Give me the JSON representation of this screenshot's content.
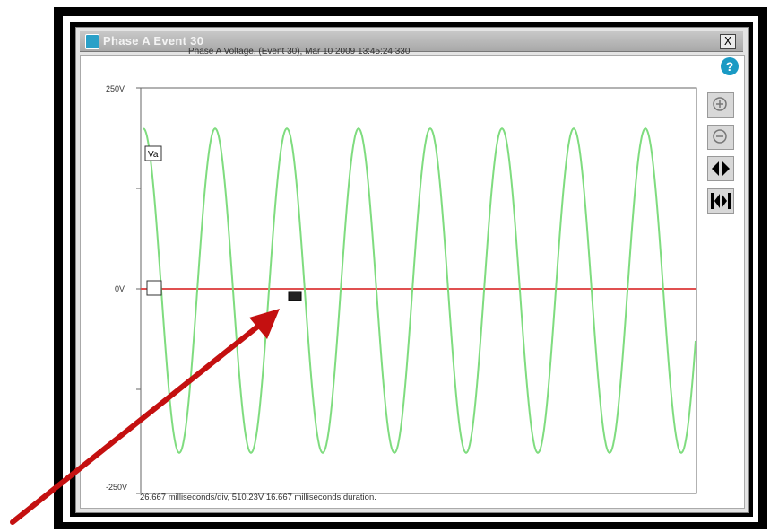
{
  "window": {
    "title": "Phase A Event 30",
    "close_label": "X",
    "help_label": "?"
  },
  "plot": {
    "title": "Phase A Voltage, (Event 30), Mar 10 2009 13:45:24.330",
    "y_top_label": "250V",
    "y_zero_label": "0V",
    "y_bottom_label": "-250V",
    "marker_label": "Va",
    "status_line": "26.667 milliseconds/div, 510.23V 16.667 milliseconds duration."
  },
  "colors": {
    "waveform": "#7fdc7f",
    "zero_line": "#e05050",
    "arrow": "#c41010"
  },
  "toolbar": {
    "icons": [
      "zoom-in-icon",
      "zoom-out-icon",
      "pan-icon",
      "fit-icon"
    ]
  },
  "chart_data": {
    "type": "line",
    "title": "Phase A Voltage, (Event 30), Mar 10 2009 13:45:24.330",
    "ylim": [
      -250,
      250
    ],
    "series": [
      {
        "name": "Va",
        "amplitude": 200,
        "cycles_visible": 7.7
      }
    ]
  }
}
